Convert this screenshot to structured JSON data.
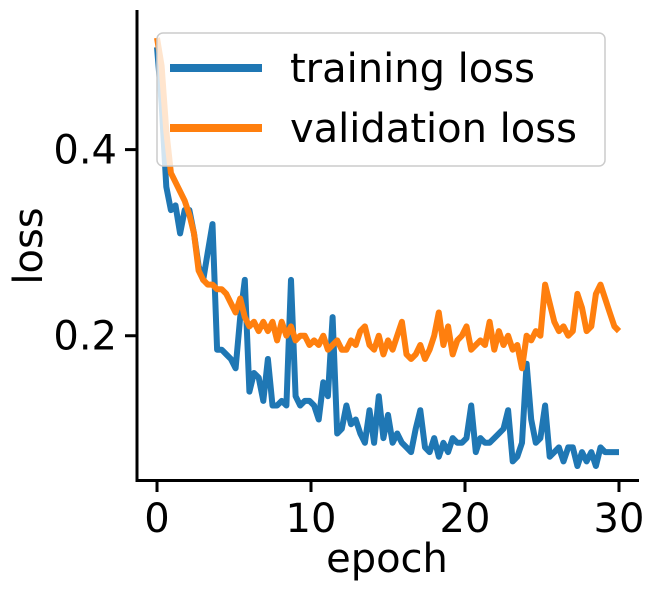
{
  "chart_data": {
    "type": "line",
    "title": "",
    "xlabel": "epoch",
    "ylabel": "loss",
    "xlim": [
      -1.3,
      31.3
    ],
    "ylim": [
      0.045,
      0.55
    ],
    "xticks": [
      0,
      10,
      20,
      30
    ],
    "xtick_labels": [
      "0",
      "10",
      "20",
      "30"
    ],
    "yticks": [
      0.2,
      0.4
    ],
    "ytick_labels": [
      "0.2",
      "0.4"
    ],
    "grid": false,
    "legend_position": "top-right",
    "series": [
      {
        "name": "training loss",
        "color": "#1f77b4",
        "x": [
          0,
          0.3,
          0.6,
          0.9,
          1.2,
          1.5,
          1.8,
          2.1,
          2.4,
          2.7,
          3.0,
          3.3,
          3.6,
          3.9,
          4.2,
          4.5,
          4.8,
          5.1,
          5.4,
          5.7,
          6.0,
          6.3,
          6.6,
          6.9,
          7.2,
          7.5,
          7.8,
          8.1,
          8.4,
          8.7,
          9.0,
          9.3,
          9.6,
          9.9,
          10.2,
          10.5,
          10.8,
          11.1,
          11.4,
          11.7,
          12.0,
          12.3,
          12.6,
          12.9,
          13.2,
          13.5,
          13.8,
          14.1,
          14.4,
          14.7,
          15.0,
          15.3,
          15.6,
          15.9,
          16.2,
          16.5,
          16.8,
          17.1,
          17.4,
          17.7,
          18.0,
          18.3,
          18.6,
          18.9,
          19.2,
          19.5,
          19.8,
          20.1,
          20.4,
          20.7,
          21.0,
          21.3,
          21.6,
          21.9,
          22.2,
          22.5,
          22.8,
          23.1,
          23.4,
          23.7,
          24.0,
          24.3,
          24.6,
          24.9,
          25.2,
          25.5,
          25.8,
          26.1,
          26.4,
          26.7,
          27.0,
          27.3,
          27.6,
          27.9,
          28.2,
          28.5,
          28.8,
          29.1,
          29.4,
          29.7,
          30.0
        ],
        "values": [
          0.51,
          0.45,
          0.36,
          0.335,
          0.34,
          0.31,
          0.335,
          0.335,
          0.31,
          0.275,
          0.26,
          0.29,
          0.32,
          0.185,
          0.185,
          0.18,
          0.175,
          0.165,
          0.22,
          0.26,
          0.14,
          0.16,
          0.155,
          0.13,
          0.175,
          0.125,
          0.125,
          0.13,
          0.125,
          0.26,
          0.135,
          0.125,
          0.13,
          0.13,
          0.125,
          0.11,
          0.15,
          0.135,
          0.22,
          0.095,
          0.1,
          0.125,
          0.105,
          0.11,
          0.095,
          0.085,
          0.12,
          0.085,
          0.135,
          0.09,
          0.115,
          0.085,
          0.095,
          0.085,
          0.08,
          0.075,
          0.1,
          0.12,
          0.08,
          0.075,
          0.09,
          0.07,
          0.085,
          0.075,
          0.09,
          0.085,
          0.085,
          0.09,
          0.125,
          0.075,
          0.09,
          0.085,
          0.085,
          0.09,
          0.095,
          0.1,
          0.12,
          0.065,
          0.07,
          0.085,
          0.17,
          0.11,
          0.085,
          0.09,
          0.125,
          0.07,
          0.075,
          0.08,
          0.065,
          0.08,
          0.08,
          0.06,
          0.075,
          0.065,
          0.075,
          0.06,
          0.08,
          0.075,
          0.075,
          0.075,
          0.075
        ]
      },
      {
        "name": "validation loss",
        "color": "#ff7f0e",
        "x": [
          0,
          0.3,
          0.6,
          0.9,
          1.2,
          1.5,
          1.8,
          2.1,
          2.4,
          2.7,
          3.0,
          3.3,
          3.6,
          3.9,
          4.2,
          4.5,
          4.8,
          5.1,
          5.4,
          5.7,
          6.0,
          6.3,
          6.6,
          6.9,
          7.2,
          7.5,
          7.8,
          8.1,
          8.4,
          8.7,
          9.0,
          9.3,
          9.6,
          9.9,
          10.2,
          10.5,
          10.8,
          11.1,
          11.4,
          11.7,
          12.0,
          12.3,
          12.6,
          12.9,
          13.2,
          13.5,
          13.8,
          14.1,
          14.4,
          14.7,
          15.0,
          15.3,
          15.6,
          15.9,
          16.2,
          16.5,
          16.8,
          17.1,
          17.4,
          17.7,
          18.0,
          18.3,
          18.6,
          18.9,
          19.2,
          19.5,
          19.8,
          20.1,
          20.4,
          20.7,
          21.0,
          21.3,
          21.6,
          21.9,
          22.2,
          22.5,
          22.8,
          23.1,
          23.4,
          23.7,
          24.0,
          24.3,
          24.6,
          24.9,
          25.2,
          25.5,
          25.8,
          26.1,
          26.4,
          26.7,
          27.0,
          27.3,
          27.6,
          27.9,
          28.2,
          28.5,
          28.8,
          29.1,
          29.4,
          29.7,
          30.0
        ],
        "values": [
          0.52,
          0.49,
          0.42,
          0.375,
          0.365,
          0.355,
          0.345,
          0.33,
          0.31,
          0.27,
          0.26,
          0.255,
          0.255,
          0.25,
          0.25,
          0.245,
          0.235,
          0.225,
          0.24,
          0.22,
          0.21,
          0.215,
          0.205,
          0.215,
          0.205,
          0.215,
          0.195,
          0.215,
          0.2,
          0.21,
          0.195,
          0.2,
          0.2,
          0.19,
          0.195,
          0.19,
          0.2,
          0.185,
          0.19,
          0.195,
          0.185,
          0.185,
          0.195,
          0.19,
          0.205,
          0.21,
          0.19,
          0.185,
          0.2,
          0.18,
          0.195,
          0.185,
          0.2,
          0.215,
          0.18,
          0.175,
          0.18,
          0.19,
          0.175,
          0.185,
          0.2,
          0.225,
          0.19,
          0.21,
          0.18,
          0.195,
          0.2,
          0.21,
          0.185,
          0.19,
          0.195,
          0.19,
          0.215,
          0.185,
          0.205,
          0.19,
          0.2,
          0.185,
          0.19,
          0.165,
          0.2,
          0.195,
          0.205,
          0.2,
          0.255,
          0.235,
          0.215,
          0.205,
          0.21,
          0.2,
          0.205,
          0.245,
          0.23,
          0.205,
          0.21,
          0.245,
          0.255,
          0.24,
          0.225,
          0.21,
          0.205
        ]
      }
    ]
  }
}
